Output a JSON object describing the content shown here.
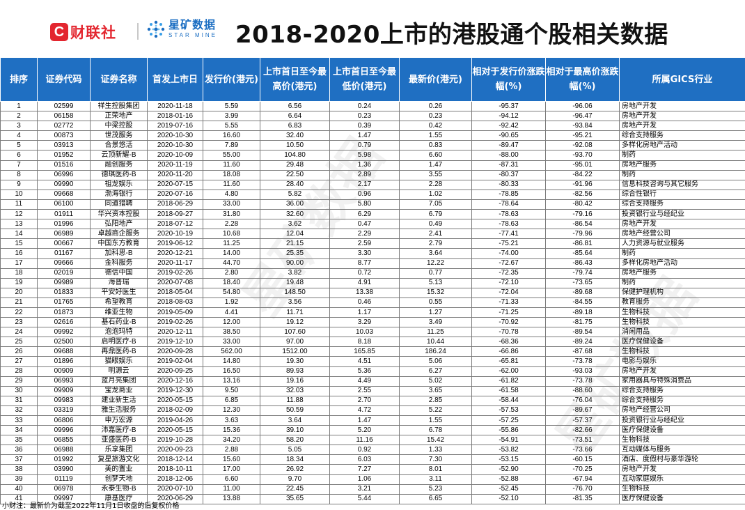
{
  "header": {
    "logo_cls_mark": "C",
    "logo_cls_text": "财联社",
    "logo_star_cn": "星矿数据",
    "logo_star_en": "STAR MINE",
    "title": "2018-2020上市的港股通个股相关数据"
  },
  "table": {
    "columns": [
      "排序",
      "证券代码",
      "证券名称",
      "首发上市日",
      "发行价(港元)",
      "上市首日至今最高价(港元)",
      "上市首日至今最低价(港元)",
      "最新价(港元)",
      "相对于发行价涨跌幅(%)",
      "相对于最高价涨跌幅(%)",
      "所属GICS行业"
    ],
    "rows": [
      [
        "1",
        "02599",
        "祥生控股集团",
        "2020-11-18",
        "5.59",
        "6.56",
        "0.24",
        "0.26",
        "-95.37",
        "-96.06",
        "房地产开发"
      ],
      [
        "2",
        "06158",
        "正荣地产",
        "2018-01-16",
        "3.99",
        "6.64",
        "0.23",
        "0.23",
        "-94.12",
        "-96.47",
        "房地产开发"
      ],
      [
        "3",
        "02772",
        "中梁控股",
        "2019-07-16",
        "5.55",
        "6.83",
        "0.39",
        "0.42",
        "-92.42",
        "-93.84",
        "房地产开发"
      ],
      [
        "4",
        "00873",
        "世茂服务",
        "2020-10-30",
        "16.60",
        "32.40",
        "1.47",
        "1.55",
        "-90.65",
        "-95.21",
        "综合支持服务"
      ],
      [
        "5",
        "03913",
        "合景悠活",
        "2020-10-30",
        "7.89",
        "10.50",
        "0.79",
        "0.83",
        "-89.47",
        "-92.08",
        "多样化房地产活动"
      ],
      [
        "6",
        "01952",
        "云顶新耀-B",
        "2020-10-09",
        "55.00",
        "104.80",
        "5.98",
        "6.60",
        "-88.00",
        "-93.70",
        "制药"
      ],
      [
        "7",
        "01516",
        "融创服务",
        "2020-11-19",
        "11.60",
        "29.48",
        "1.36",
        "1.47",
        "-87.31",
        "-95.01",
        "房地产服务"
      ],
      [
        "8",
        "06996",
        "德琪医药-B",
        "2020-11-20",
        "18.08",
        "22.50",
        "2.89",
        "3.55",
        "-80.37",
        "-84.22",
        "制药"
      ],
      [
        "9",
        "09990",
        "祖龙娱乐",
        "2020-07-15",
        "11.60",
        "28.40",
        "2.17",
        "2.28",
        "-80.33",
        "-91.96",
        "信息科技咨询与其它服务"
      ],
      [
        "10",
        "09668",
        "渤海银行",
        "2020-07-16",
        "4.80",
        "5.82",
        "0.96",
        "1.02",
        "-78.85",
        "-82.56",
        "综合性银行"
      ],
      [
        "11",
        "06100",
        "同道猎聘",
        "2018-06-29",
        "33.00",
        "36.00",
        "5.80",
        "7.05",
        "-78.64",
        "-80.42",
        "综合支持服务"
      ],
      [
        "12",
        "01911",
        "华兴资本控股",
        "2018-09-27",
        "31.80",
        "32.60",
        "6.29",
        "6.79",
        "-78.63",
        "-79.16",
        "投资银行业与经纪业"
      ],
      [
        "13",
        "01996",
        "弘阳地产",
        "2018-07-12",
        "2.28",
        "3.62",
        "0.47",
        "0.49",
        "-78.63",
        "-86.54",
        "房地产开发"
      ],
      [
        "14",
        "06989",
        "卓越商企服务",
        "2020-10-19",
        "10.68",
        "12.04",
        "2.29",
        "2.41",
        "-77.41",
        "-79.96",
        "房地产经营公司"
      ],
      [
        "15",
        "00667",
        "中国东方教育",
        "2019-06-12",
        "11.25",
        "21.15",
        "2.59",
        "2.79",
        "-75.21",
        "-86.81",
        "人力资源与就业服务"
      ],
      [
        "16",
        "01167",
        "加科思-B",
        "2020-12-21",
        "14.00",
        "25.35",
        "3.30",
        "3.64",
        "-74.00",
        "-85.64",
        "制药"
      ],
      [
        "17",
        "09666",
        "金科服务",
        "2020-11-17",
        "44.70",
        "90.00",
        "8.77",
        "12.22",
        "-72.67",
        "-86.43",
        "多样化房地产活动"
      ],
      [
        "18",
        "02019",
        "德信中国",
        "2019-02-26",
        "2.80",
        "3.82",
        "0.72",
        "0.77",
        "-72.35",
        "-79.74",
        "房地产服务"
      ],
      [
        "19",
        "09989",
        "海普瑞",
        "2020-07-08",
        "18.40",
        "19.48",
        "4.91",
        "5.13",
        "-72.10",
        "-73.65",
        "制药"
      ],
      [
        "20",
        "01833",
        "平安好医生",
        "2018-05-04",
        "54.80",
        "148.50",
        "13.38",
        "15.32",
        "-72.04",
        "-89.68",
        "保健护理机构"
      ],
      [
        "21",
        "01765",
        "希望教育",
        "2018-08-03",
        "1.92",
        "3.56",
        "0.46",
        "0.55",
        "-71.33",
        "-84.55",
        "教育服务"
      ],
      [
        "22",
        "01873",
        "维亚生物",
        "2019-05-09",
        "4.41",
        "11.71",
        "1.17",
        "1.27",
        "-71.25",
        "-89.18",
        "生物科技"
      ],
      [
        "23",
        "02616",
        "基石药业-B",
        "2019-02-26",
        "12.00",
        "19.12",
        "3.29",
        "3.49",
        "-70.92",
        "-81.75",
        "生物科技"
      ],
      [
        "24",
        "09992",
        "泡泡玛特",
        "2020-12-11",
        "38.50",
        "107.60",
        "10.03",
        "11.25",
        "-70.78",
        "-89.54",
        "消闲用品"
      ],
      [
        "25",
        "02500",
        "启明医疗-B",
        "2019-12-10",
        "33.00",
        "97.00",
        "8.18",
        "10.44",
        "-68.36",
        "-89.24",
        "医疗保健设备"
      ],
      [
        "26",
        "09688",
        "再鼎医药-B",
        "2020-09-28",
        "562.00",
        "1512.00",
        "165.85",
        "186.24",
        "-66.86",
        "-87.68",
        "生物科技"
      ],
      [
        "27",
        "01896",
        "猫眼娱乐",
        "2019-02-04",
        "14.80",
        "19.30",
        "4.51",
        "5.06",
        "-65.81",
        "-73.78",
        "电影与娱乐"
      ],
      [
        "28",
        "00909",
        "明源云",
        "2020-09-25",
        "16.50",
        "89.93",
        "5.36",
        "6.27",
        "-62.00",
        "-93.03",
        "房地产开发"
      ],
      [
        "29",
        "06993",
        "蓝月亮集团",
        "2020-12-16",
        "13.16",
        "19.16",
        "4.49",
        "5.02",
        "-61.82",
        "-73.78",
        "家用器具与特殊消费品"
      ],
      [
        "30",
        "09909",
        "宝龙商业",
        "2019-12-30",
        "9.50",
        "32.03",
        "2.55",
        "3.65",
        "-61.58",
        "-88.60",
        "综合支持服务"
      ],
      [
        "31",
        "09983",
        "建业新生活",
        "2020-05-15",
        "6.85",
        "11.88",
        "2.70",
        "2.85",
        "-58.44",
        "-76.04",
        "综合支持服务"
      ],
      [
        "32",
        "03319",
        "雅生活服务",
        "2018-02-09",
        "12.30",
        "50.59",
        "4.72",
        "5.22",
        "-57.53",
        "-89.67",
        "房地产经营公司"
      ],
      [
        "33",
        "06806",
        "申万宏源",
        "2019-04-26",
        "3.63",
        "3.64",
        "1.47",
        "1.55",
        "-57.25",
        "-57.37",
        "投资银行业与经纪业"
      ],
      [
        "34",
        "09996",
        "沛嘉医疗-B",
        "2020-05-15",
        "15.36",
        "39.10",
        "5.20",
        "6.78",
        "-55.86",
        "-82.66",
        "医疗保健设备"
      ],
      [
        "35",
        "06855",
        "亚盛医药-B",
        "2019-10-28",
        "34.20",
        "58.20",
        "11.16",
        "15.42",
        "-54.91",
        "-73.51",
        "生物科技"
      ],
      [
        "36",
        "06988",
        "乐享集团",
        "2020-09-23",
        "2.88",
        "5.05",
        "0.92",
        "1.33",
        "-53.82",
        "-73.66",
        "互动媒体与服务"
      ],
      [
        "37",
        "01992",
        "复星旅游文化",
        "2018-12-14",
        "15.60",
        "18.34",
        "6.03",
        "7.30",
        "-53.15",
        "-60.15",
        "酒店、度假村与豪华游轮"
      ],
      [
        "38",
        "03990",
        "美的置业",
        "2018-10-11",
        "17.00",
        "26.92",
        "7.27",
        "8.01",
        "-52.90",
        "-70.25",
        "房地产开发"
      ],
      [
        "39",
        "01119",
        "创梦天地",
        "2018-12-06",
        "6.60",
        "9.70",
        "1.06",
        "3.11",
        "-52.88",
        "-67.94",
        "互动家庭娱乐"
      ],
      [
        "40",
        "06978",
        "永泰生物-B",
        "2020-07-10",
        "11.00",
        "22.45",
        "3.21",
        "5.23",
        "-52.45",
        "-76.70",
        "生物科技"
      ],
      [
        "41",
        "09997",
        "康基医疗",
        "2020-06-29",
        "13.88",
        "35.65",
        "5.44",
        "6.65",
        "-52.10",
        "-81.35",
        "医疗保健设备"
      ]
    ]
  },
  "footnote": "小财注：最新价为截至2022年11月1日收盘的后复权价格",
  "watermark": "星矿数据",
  "colors": {
    "header_bg": "#1f6fc2",
    "brand_red": "#e3262f",
    "brand_blue": "#1b6ec2"
  }
}
